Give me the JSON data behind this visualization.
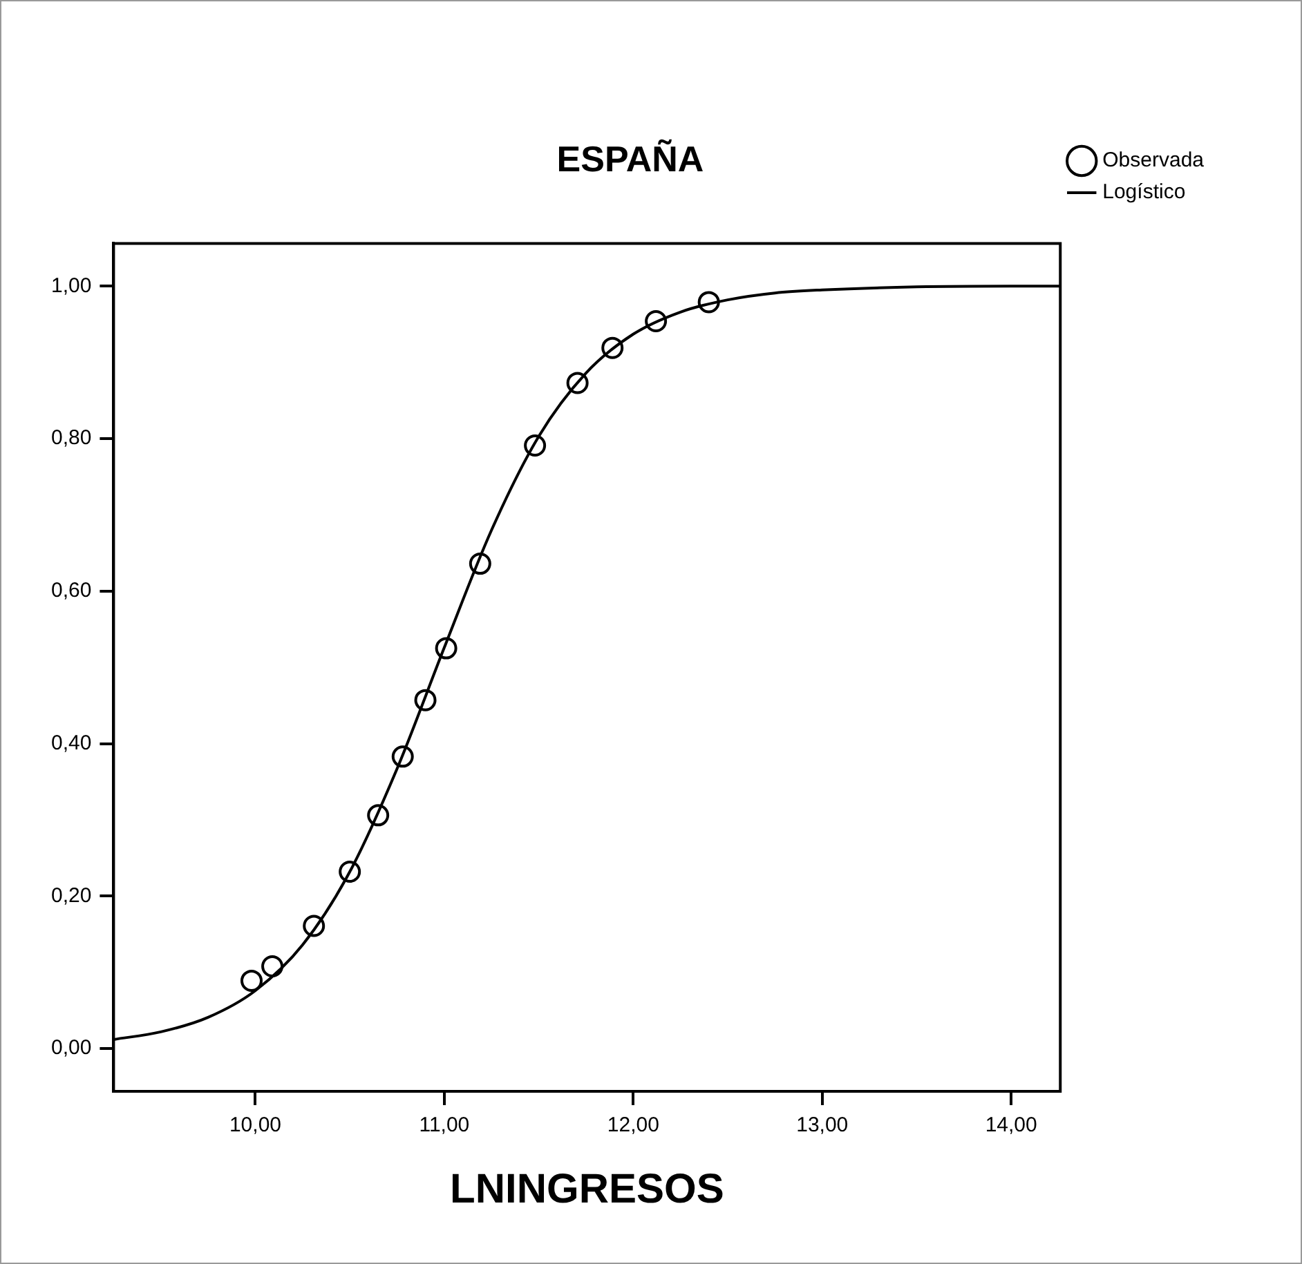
{
  "chart_data": {
    "type": "scatter",
    "title": "ESPAÑA",
    "xlabel": "LNINGRESOS",
    "xlim": [
      9.25,
      14.26
    ],
    "xticks": [
      {
        "value": 10,
        "label": "10,00"
      },
      {
        "value": 11,
        "label": "11,00"
      },
      {
        "value": 12,
        "label": "12,00"
      },
      {
        "value": 13,
        "label": "13,00"
      },
      {
        "value": 14,
        "label": "14,00"
      }
    ],
    "ylim": [
      -0.056,
      1.056
    ],
    "yticks": [
      {
        "value": 0,
        "label": "0,00"
      },
      {
        "value": 0.2,
        "label": "0,20"
      },
      {
        "value": 0.4,
        "label": "0,40"
      },
      {
        "value": 0.6,
        "label": "0,60"
      },
      {
        "value": 0.8,
        "label": "0,80"
      },
      {
        "value": 1,
        "label": "1,00"
      }
    ],
    "grid": false,
    "legend": "right",
    "marker": "circle",
    "series": [
      {
        "name": "Observada",
        "color": "#000000",
        "x": [
          9.98,
          10.09,
          10.31,
          10.5,
          10.65,
          10.78,
          10.9,
          11.01,
          11.19,
          11.48,
          11.705,
          11.89,
          12.12,
          12.4
        ],
        "values": [
          0.089,
          0.108,
          0.161,
          0.232,
          0.306,
          0.383,
          0.457,
          0.525,
          0.636,
          0.791,
          0.873,
          0.919,
          0.954,
          0.979
        ]
      },
      {
        "name": "Logístico",
        "type": "line",
        "marker": "none",
        "line_style": "solid",
        "color": "#000000",
        "x": [
          9.25,
          9.5,
          9.75,
          10,
          10.25,
          10.5,
          10.75,
          11,
          11.25,
          11.5,
          11.75,
          12,
          12.25,
          12.5,
          12.75,
          13,
          13.5,
          14,
          14.26
        ],
        "values": [
          0.012,
          0.022,
          0.041,
          0.076,
          0.136,
          0.232,
          0.367,
          0.526,
          0.68,
          0.803,
          0.886,
          0.937,
          0.966,
          0.982,
          0.991,
          0.995,
          0.999,
          1,
          1
        ]
      }
    ]
  }
}
